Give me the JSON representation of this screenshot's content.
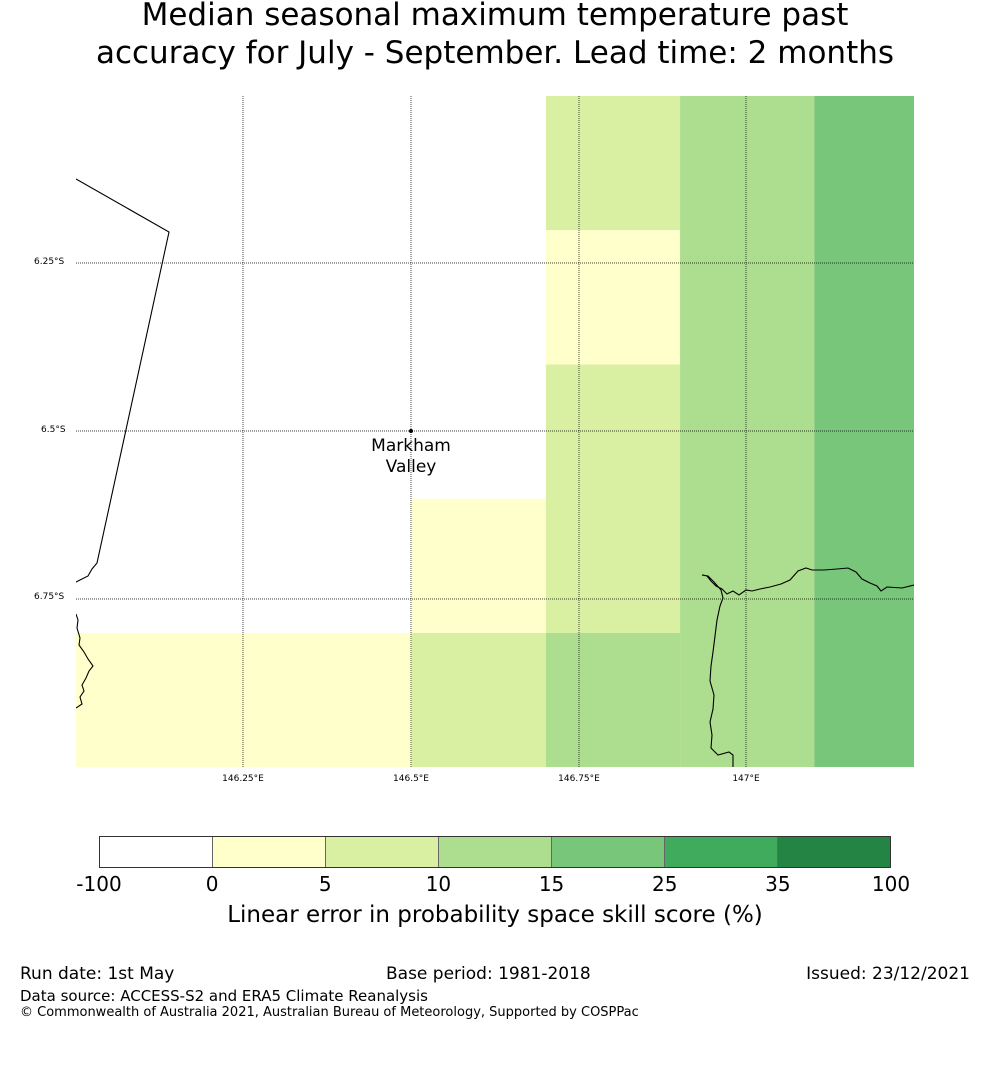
{
  "title": {
    "line1": "Median seasonal maximum temperature past",
    "line2": "accuracy for July - September. Lead time: 2 months"
  },
  "map": {
    "lat_ticks": [
      "6.25°S",
      "6.5°S",
      "6.75°S"
    ],
    "lon_ticks": [
      "146.25°E",
      "146.5°E",
      "146.75°E",
      "147°E"
    ],
    "place_label": {
      "line1": "Markham",
      "line2": "Valley"
    },
    "grid_cells": [
      {
        "lon_from": 146.5,
        "lon_to": 146.7,
        "lat_from": -6.6,
        "lat_to": -6.8,
        "class": "0-5"
      },
      {
        "lon_from": 146.0,
        "lon_to": 146.5,
        "lat_from": -6.8,
        "lat_to": -7.0,
        "class": "0-5"
      },
      {
        "lon_from": 146.5,
        "lon_to": 146.7,
        "lat_from": -6.8,
        "lat_to": -7.0,
        "class": "5-10"
      },
      {
        "lon_from": 146.7,
        "lon_to": 146.9,
        "lat_from": -6.0,
        "lat_to": -6.2,
        "class": "5-10"
      },
      {
        "lon_from": 146.7,
        "lon_to": 146.9,
        "lat_from": -6.2,
        "lat_to": -6.4,
        "class": "0-5"
      },
      {
        "lon_from": 146.7,
        "lon_to": 146.9,
        "lat_from": -6.4,
        "lat_to": -6.8,
        "class": "5-10"
      },
      {
        "lon_from": 146.7,
        "lon_to": 146.9,
        "lat_from": -6.8,
        "lat_to": -7.0,
        "class": "10-15"
      },
      {
        "lon_from": 146.9,
        "lon_to": 147.1,
        "lat_from": -6.0,
        "lat_to": -7.0,
        "class": "10-15"
      },
      {
        "lon_from": 147.1,
        "lon_to": 147.25,
        "lat_from": -6.0,
        "lat_to": -7.0,
        "class": "15-25"
      }
    ]
  },
  "colorbar": {
    "ticks": [
      "-100",
      "0",
      "5",
      "10",
      "15",
      "25",
      "35",
      "100"
    ],
    "colors": [
      "#ffffff",
      "#ffffcc",
      "#d9f0a3",
      "#addd8e",
      "#78c679",
      "#41ab5d",
      "#238443"
    ],
    "label": "Linear error in probability space skill score (%)"
  },
  "footer": {
    "run_date": "Run date: 1st May",
    "base_period": "Base period: 1981-2018",
    "issued": "Issued: 23/12/2021",
    "data_source": "Data source: ACCESS-S2 and ERA5 Climate Reanalysis",
    "copyright": "© Commonwealth of Australia 2021, Australian Bureau of Meteorology, Supported by COSPPac"
  }
}
